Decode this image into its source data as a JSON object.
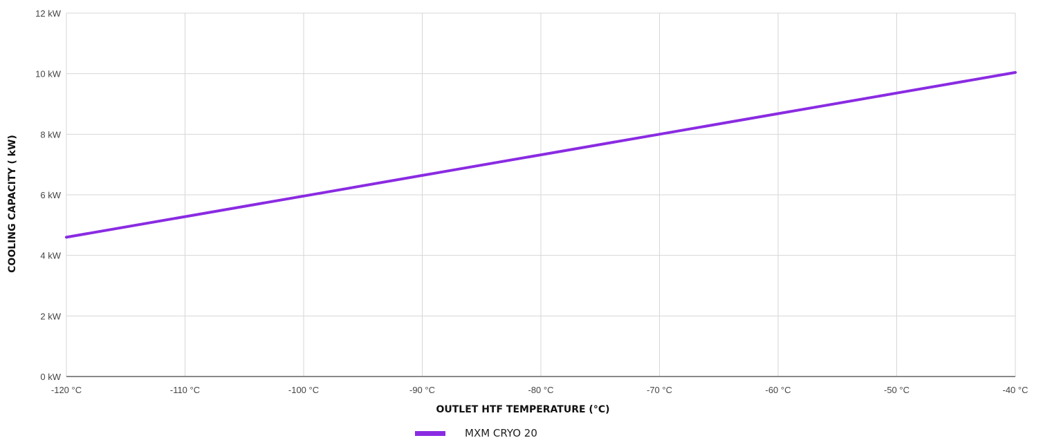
{
  "chart_data": {
    "type": "line",
    "title": "",
    "xlabel": "OUTLET HTF TEMPERATURE (°C)",
    "ylabel": "COOLING CAPACITY ( kW)",
    "xlim": [
      -120,
      -40
    ],
    "ylim": [
      0,
      12
    ],
    "x_ticks": [
      -120,
      -110,
      -100,
      -90,
      -80,
      -70,
      -60,
      -50,
      -40
    ],
    "y_ticks": [
      0,
      2,
      4,
      6,
      8,
      10,
      12
    ],
    "x_tick_labels": [
      "-120 °C",
      "-110 °C",
      "-100 °C",
      "-90 °C",
      "-80 °C",
      "-70 °C",
      "-60 °C",
      "-50 °C",
      "-40 °C"
    ],
    "y_tick_labels": [
      "0 kW",
      "2 kW",
      "4 kW",
      "6 kW",
      "8 kW",
      "10 kW",
      "12 kW"
    ],
    "grid": true,
    "legend": "bottom-center",
    "series": [
      {
        "name": "MXM CRYO 20",
        "color": "#8a2be2",
        "x": [
          -120,
          -110,
          -100,
          -90,
          -80,
          -70,
          -60,
          -50,
          -40
        ],
        "y": [
          4.6,
          5.28,
          5.96,
          6.64,
          7.32,
          8.0,
          8.68,
          9.36,
          10.04
        ]
      }
    ]
  }
}
